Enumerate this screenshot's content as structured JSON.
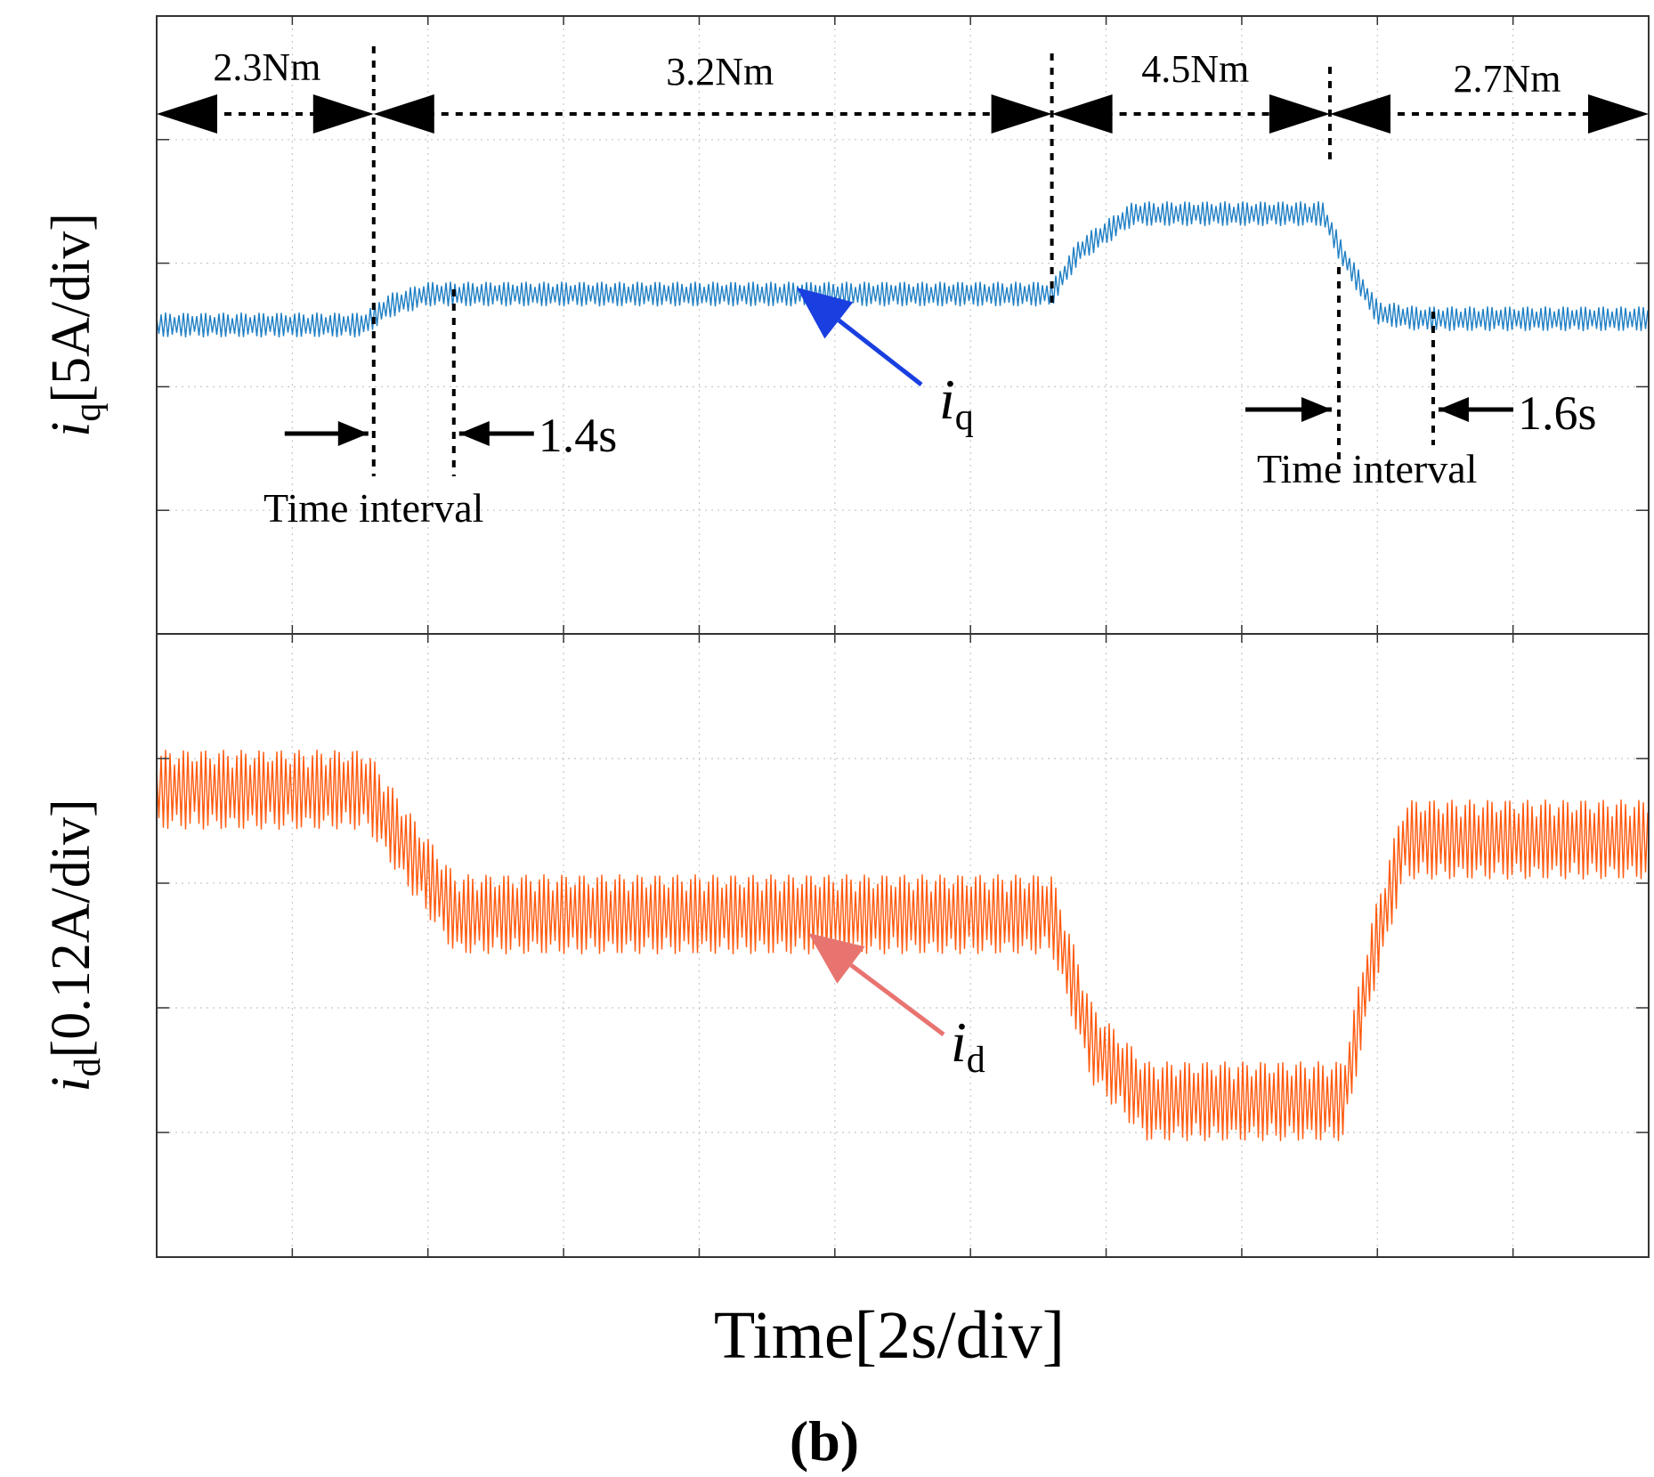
{
  "chart_data": [
    {
      "type": "line",
      "title": "",
      "xlabel": "Time[2s/div]",
      "ylabel": {
        "sym": "i",
        "sub": "q",
        "rest": "[5A/div]"
      },
      "xlim": [
        0,
        11
      ],
      "ylim": [
        0,
        5
      ],
      "grid": true,
      "series": [
        {
          "name": "iq",
          "color": "#1f7fc4",
          "label": {
            "sym": "i",
            "sub": "q"
          },
          "x": [
            0,
            1.52,
            1.7,
            2.0,
            2.2,
            6.6,
            6.8,
            7.2,
            8.6,
            8.75,
            9.0,
            9.3,
            11
          ],
          "y": [
            2.5,
            2.5,
            2.65,
            2.75,
            2.75,
            2.75,
            3.1,
            3.4,
            3.4,
            3.05,
            2.6,
            2.55,
            2.55
          ],
          "ripple": 0.1
        }
      ],
      "annotations": {
        "torque_segments": [
          "2.3Nm",
          "3.2Nm",
          "4.5Nm",
          "2.7Nm"
        ],
        "step_times": [
          1.6,
          6.6,
          8.65
        ],
        "interval_1": {
          "label": "Time interval",
          "duration": "1.4s"
        },
        "interval_2": {
          "label": "Time interval",
          "duration": "1.6s"
        }
      }
    },
    {
      "type": "line",
      "title": "",
      "xlabel": "Time[2s/div]",
      "ylabel": {
        "sym": "i",
        "sub": "d",
        "rest": "[0.12A/div]"
      },
      "xlim": [
        0,
        11
      ],
      "ylim": [
        0,
        5
      ],
      "grid": true,
      "series": [
        {
          "name": "id",
          "color": "#ff5a0e",
          "label": {
            "sym": "i",
            "sub": "d"
          },
          "x": [
            0,
            1.55,
            1.8,
            2.2,
            6.6,
            6.9,
            7.3,
            8.75,
            8.95,
            9.2,
            11
          ],
          "y": [
            3.75,
            3.75,
            3.35,
            2.75,
            2.75,
            1.7,
            1.25,
            1.25,
            2.35,
            3.35,
            3.35
          ],
          "ripple": 0.32
        }
      ]
    }
  ],
  "figure_label": "(b)",
  "colors": {
    "iq": "#1f7fc4",
    "id": "#ff5a0e",
    "iq_arrow": "#1a3fe0",
    "id_arrow": "#e87470"
  }
}
